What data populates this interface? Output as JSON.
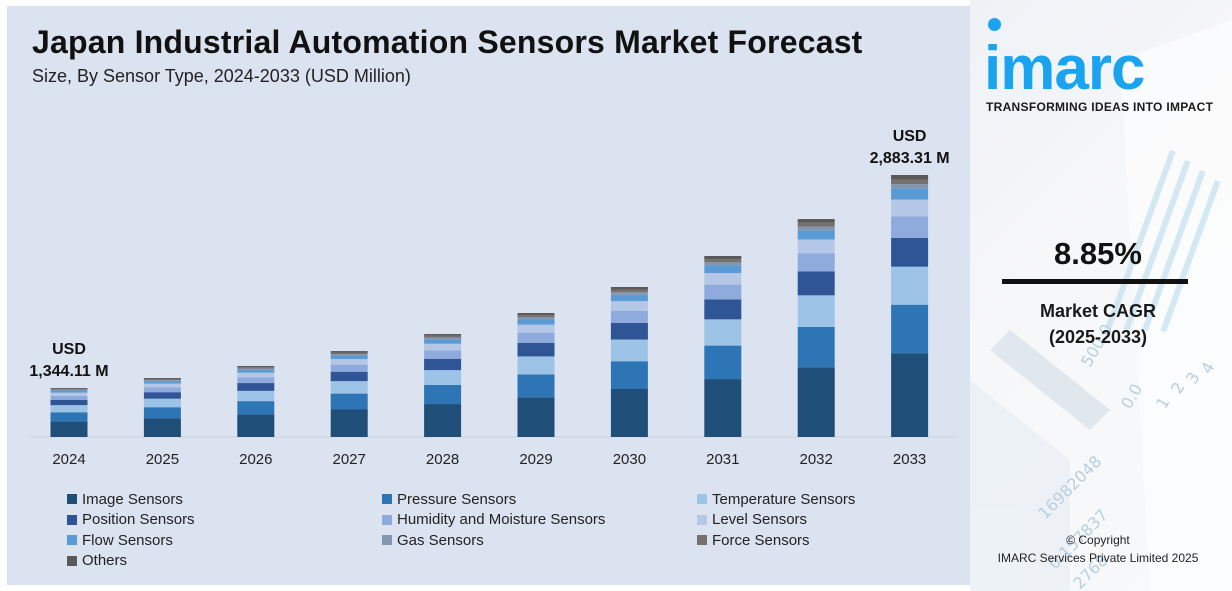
{
  "header": {
    "title": "Japan Industrial Automation Sensors Market Forecast",
    "subtitle": "Size, By Sensor Type, 2024-2033 (USD Million)"
  },
  "branding": {
    "logo_text": "imarc",
    "tagline": "TRANSFORMING IDEAS INTO IMPACT",
    "brand_color": "#1aa3ef"
  },
  "cagr": {
    "value": "8.85%",
    "label_line1": "Market CAGR",
    "label_line2": "(2025-2033)"
  },
  "footer": {
    "copyright_line1": "© Copyright",
    "copyright_line2": "IMARC Services Private Limited 2025"
  },
  "chart_data": {
    "type": "bar",
    "stacked": true,
    "title": "Japan Industrial Automation Sensors Market Forecast",
    "subtitle": "Size, By Sensor Type, 2024-2033 (USD Million)",
    "xlabel": "",
    "ylabel": "USD Million",
    "categories": [
      "2024",
      "2025",
      "2026",
      "2027",
      "2028",
      "2029",
      "2030",
      "2031",
      "2032",
      "2033"
    ],
    "totals": [
      1344.11,
      1416,
      1503,
      1611,
      1734,
      1886,
      2074,
      2298,
      2565,
      2883.31
    ],
    "axis_floor": 990,
    "grid": false,
    "legend_position": "bottom",
    "annotations": [
      {
        "category": "2024",
        "line1": "USD",
        "line2": "1,344.11 M"
      },
      {
        "category": "2033",
        "line1": "USD",
        "line2": "2,883.31 M"
      }
    ],
    "series": [
      {
        "name": "Image Sensors",
        "color": "#1f4e79",
        "share": 0.32
      },
      {
        "name": "Pressure Sensors",
        "color": "#2e75b6",
        "share": 0.185
      },
      {
        "name": "Temperature Sensors",
        "color": "#9dc3e6",
        "share": 0.145
      },
      {
        "name": "Position Sensors",
        "color": "#2f5597",
        "share": 0.11
      },
      {
        "name": "Humidity and Moisture Sensors",
        "color": "#8faadc",
        "share": 0.082
      },
      {
        "name": "Level Sensors",
        "color": "#b4c7e7",
        "share": 0.064
      },
      {
        "name": "Flow Sensors",
        "color": "#5b9bd5",
        "share": 0.042
      },
      {
        "name": "Gas Sensors",
        "color": "#8497b0",
        "share": 0.017
      },
      {
        "name": "Force Sensors",
        "color": "#767171",
        "share": 0.018
      },
      {
        "name": "Others",
        "color": "#595959",
        "share": 0.017
      }
    ]
  }
}
